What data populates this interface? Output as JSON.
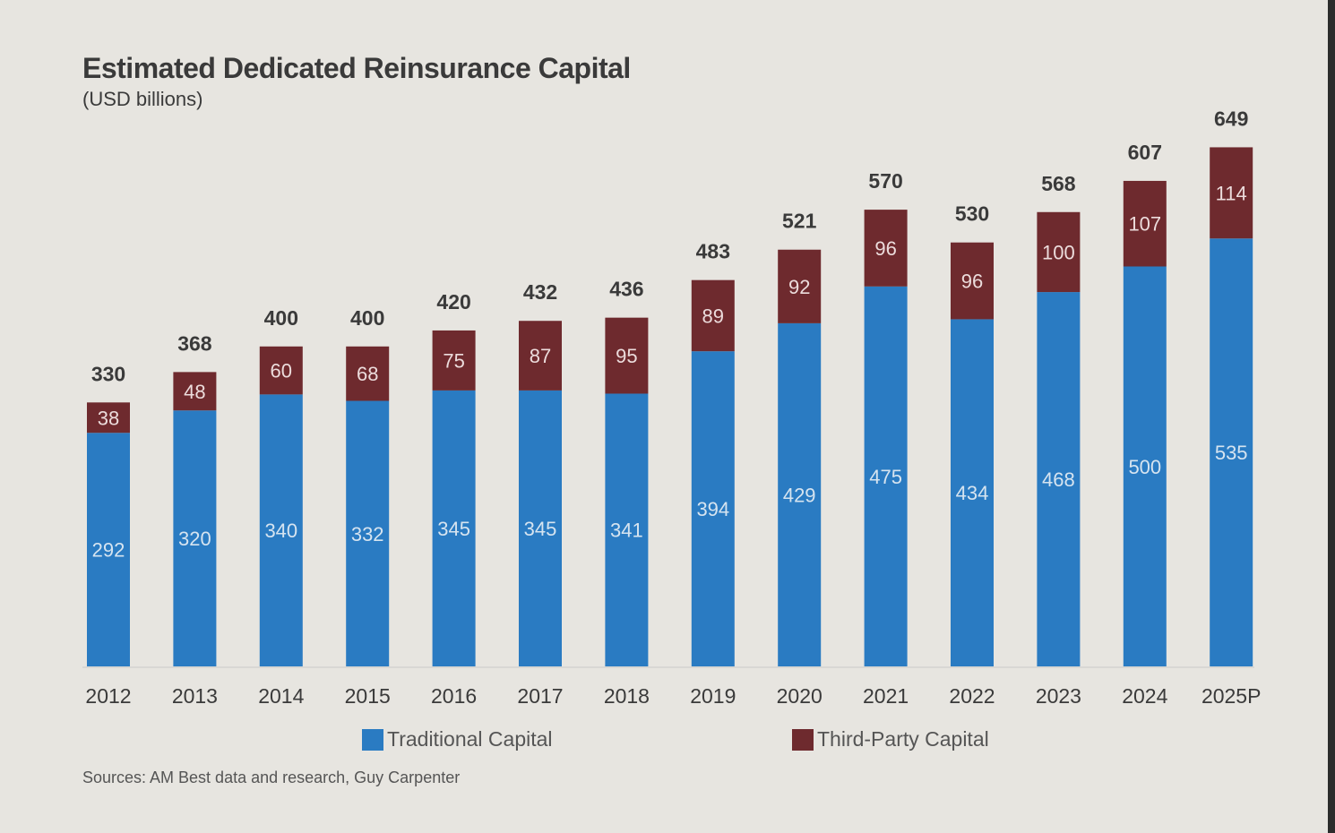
{
  "chart_data": {
    "type": "bar",
    "stacked": true,
    "title": "Estimated Dedicated Reinsurance Capital",
    "subtitle": "(USD billions)",
    "categories": [
      "2012",
      "2013",
      "2014",
      "2015",
      "2016",
      "2017",
      "2018",
      "2019",
      "2020",
      "2021",
      "2022",
      "2023",
      "2024",
      "2025P"
    ],
    "series": [
      {
        "name": "Traditional Capital",
        "color": "#2a7bc2",
        "label_color": "#d6e4f0",
        "values": [
          292,
          320,
          340,
          332,
          345,
          345,
          341,
          394,
          429,
          475,
          434,
          468,
          500,
          535
        ]
      },
      {
        "name": "Third-Party Capital",
        "color": "#6e2a2e",
        "label_color": "#ecdcdc",
        "values": [
          38,
          48,
          60,
          68,
          75,
          87,
          95,
          89,
          92,
          96,
          96,
          100,
          107,
          114
        ]
      }
    ],
    "totals": [
      330,
      368,
      400,
      400,
      420,
      432,
      436,
      483,
      521,
      570,
      530,
      568,
      607,
      649
    ],
    "ylim": [
      0,
      660
    ],
    "grid": false,
    "legend_position": "bottom",
    "source": "Sources: AM Best data and research, Guy Carpenter"
  }
}
